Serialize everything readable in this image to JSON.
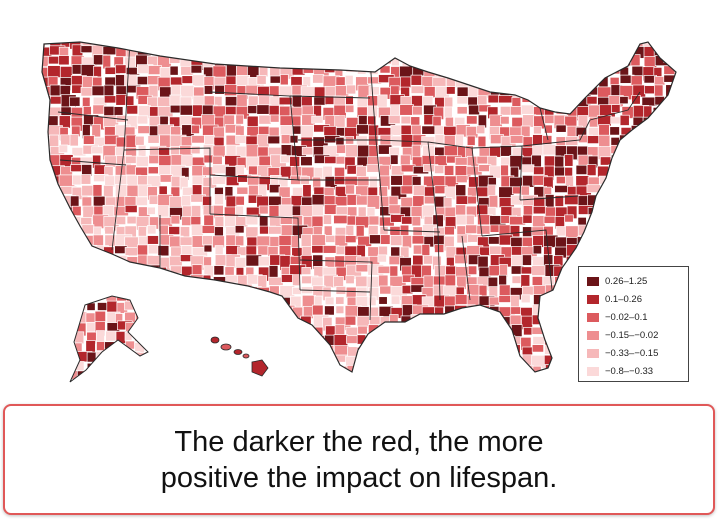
{
  "legend": {
    "items": [
      {
        "label": "0.26–1.25",
        "color": "#6b1418"
      },
      {
        "label": "0.1–0.26",
        "color": "#b3262c"
      },
      {
        "label": "−0.02–0.1",
        "color": "#dc5a5e"
      },
      {
        "label": "−0.15–−0.02",
        "color": "#ee8e90"
      },
      {
        "label": "−0.33–−0.15",
        "color": "#f6b8b9"
      },
      {
        "label": "−0.8–−0.33",
        "color": "#fbd9d9"
      }
    ]
  },
  "caption": {
    "text": "The darker the red, the more positive the impact on lifespan."
  },
  "colors": {
    "caption_border": "#e05858",
    "county_border": "#ffffff",
    "state_border": "#222222"
  }
}
